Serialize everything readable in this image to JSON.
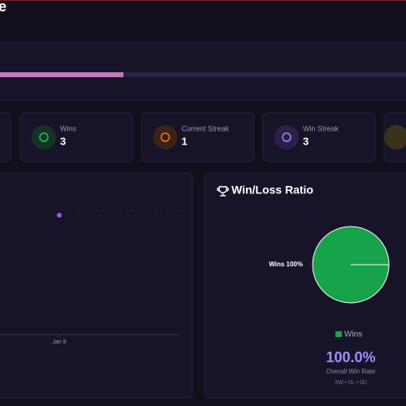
{
  "header": {
    "title": "e"
  },
  "stats": [
    {
      "label": "Wins",
      "value": 3
    },
    {
      "label": "Current Streak",
      "value": 1
    },
    {
      "label": "Win Streak",
      "value": 3
    }
  ],
  "chart_data": [
    {
      "type": "line",
      "categories": [
        "Jan 8"
      ],
      "values": [
        100
      ],
      "color": "#8b5cf6",
      "ylim": [
        0,
        100
      ]
    },
    {
      "type": "pie",
      "title": "Win/Loss Ratio",
      "categories": [
        "Wins"
      ],
      "values": [
        100
      ],
      "value_labels": [
        "Wins 100%"
      ],
      "colors": [
        "#16a34a"
      ]
    }
  ],
  "summary": {
    "win_rate": "100.0%",
    "caption": "Overall Win Rate",
    "record": "3W • 0L • 0D"
  }
}
